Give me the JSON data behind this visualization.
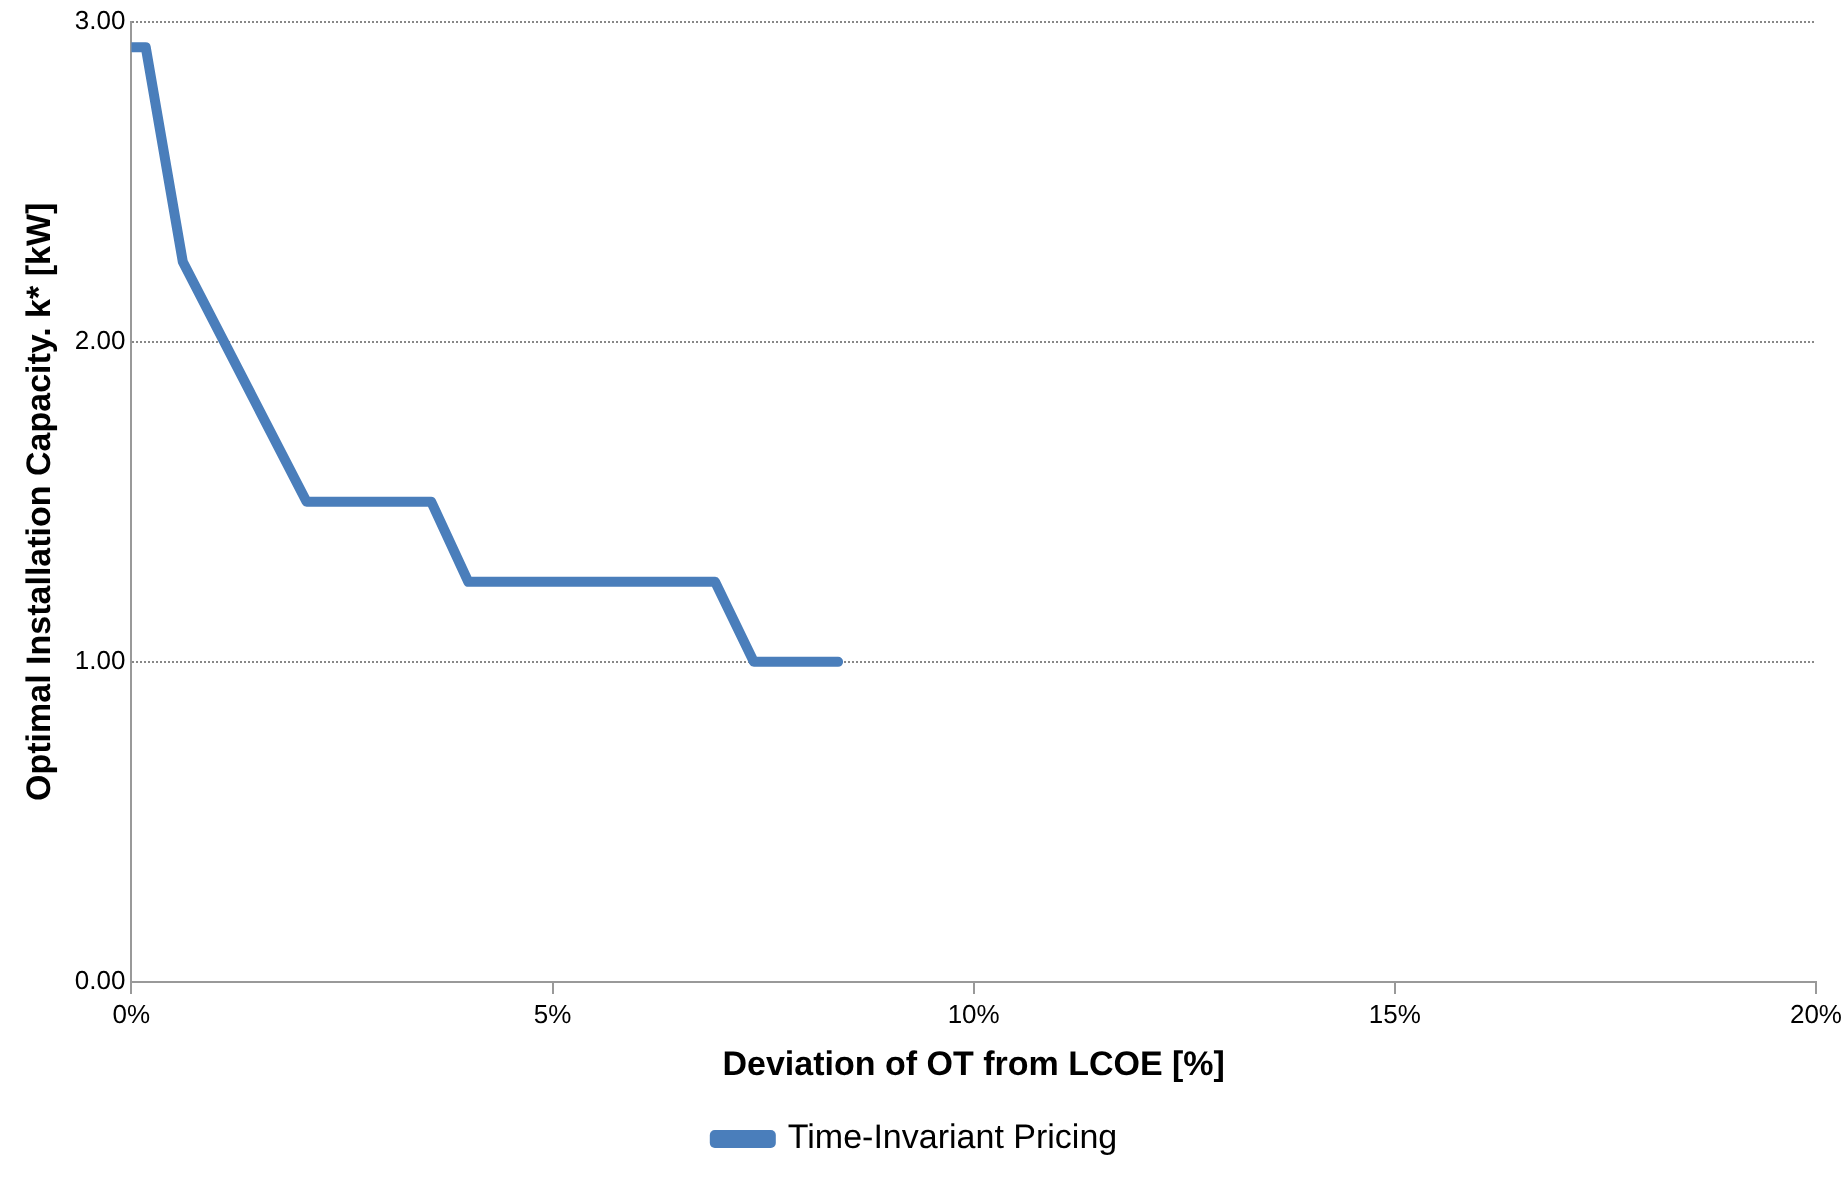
{
  "chart_data": {
    "type": "line",
    "xlabel": "Deviation of OT from LCOE [%]",
    "ylabel": "Optimal Installation Capacity. k* [kW]",
    "x": [
      0,
      0.17,
      0.61,
      2.08,
      3.56,
      4.0,
      6.93,
      7.39,
      8.39
    ],
    "series": [
      {
        "name": "Time-Invariant Pricing",
        "color": "#4a7ebb",
        "values": [
          2.92,
          2.92,
          2.25,
          1.5,
          1.5,
          1.25,
          1.25,
          1.0,
          1.0
        ]
      }
    ],
    "xlim": [
      0,
      20
    ],
    "xticks": [
      {
        "value": 0,
        "label": "0%"
      },
      {
        "value": 5,
        "label": "5%"
      },
      {
        "value": 10,
        "label": "10%"
      },
      {
        "value": 15,
        "label": "15%"
      },
      {
        "value": 20,
        "label": "20%"
      }
    ],
    "ylim": [
      0,
      3
    ],
    "yticks": [
      {
        "value": 0,
        "label": "0.00"
      },
      {
        "value": 1,
        "label": "1.00"
      },
      {
        "value": 2,
        "label": "2.00"
      },
      {
        "value": 3,
        "label": "3.00"
      }
    ],
    "grid": "y",
    "legend": "bottom",
    "marker": "none",
    "line_style": "solid"
  }
}
